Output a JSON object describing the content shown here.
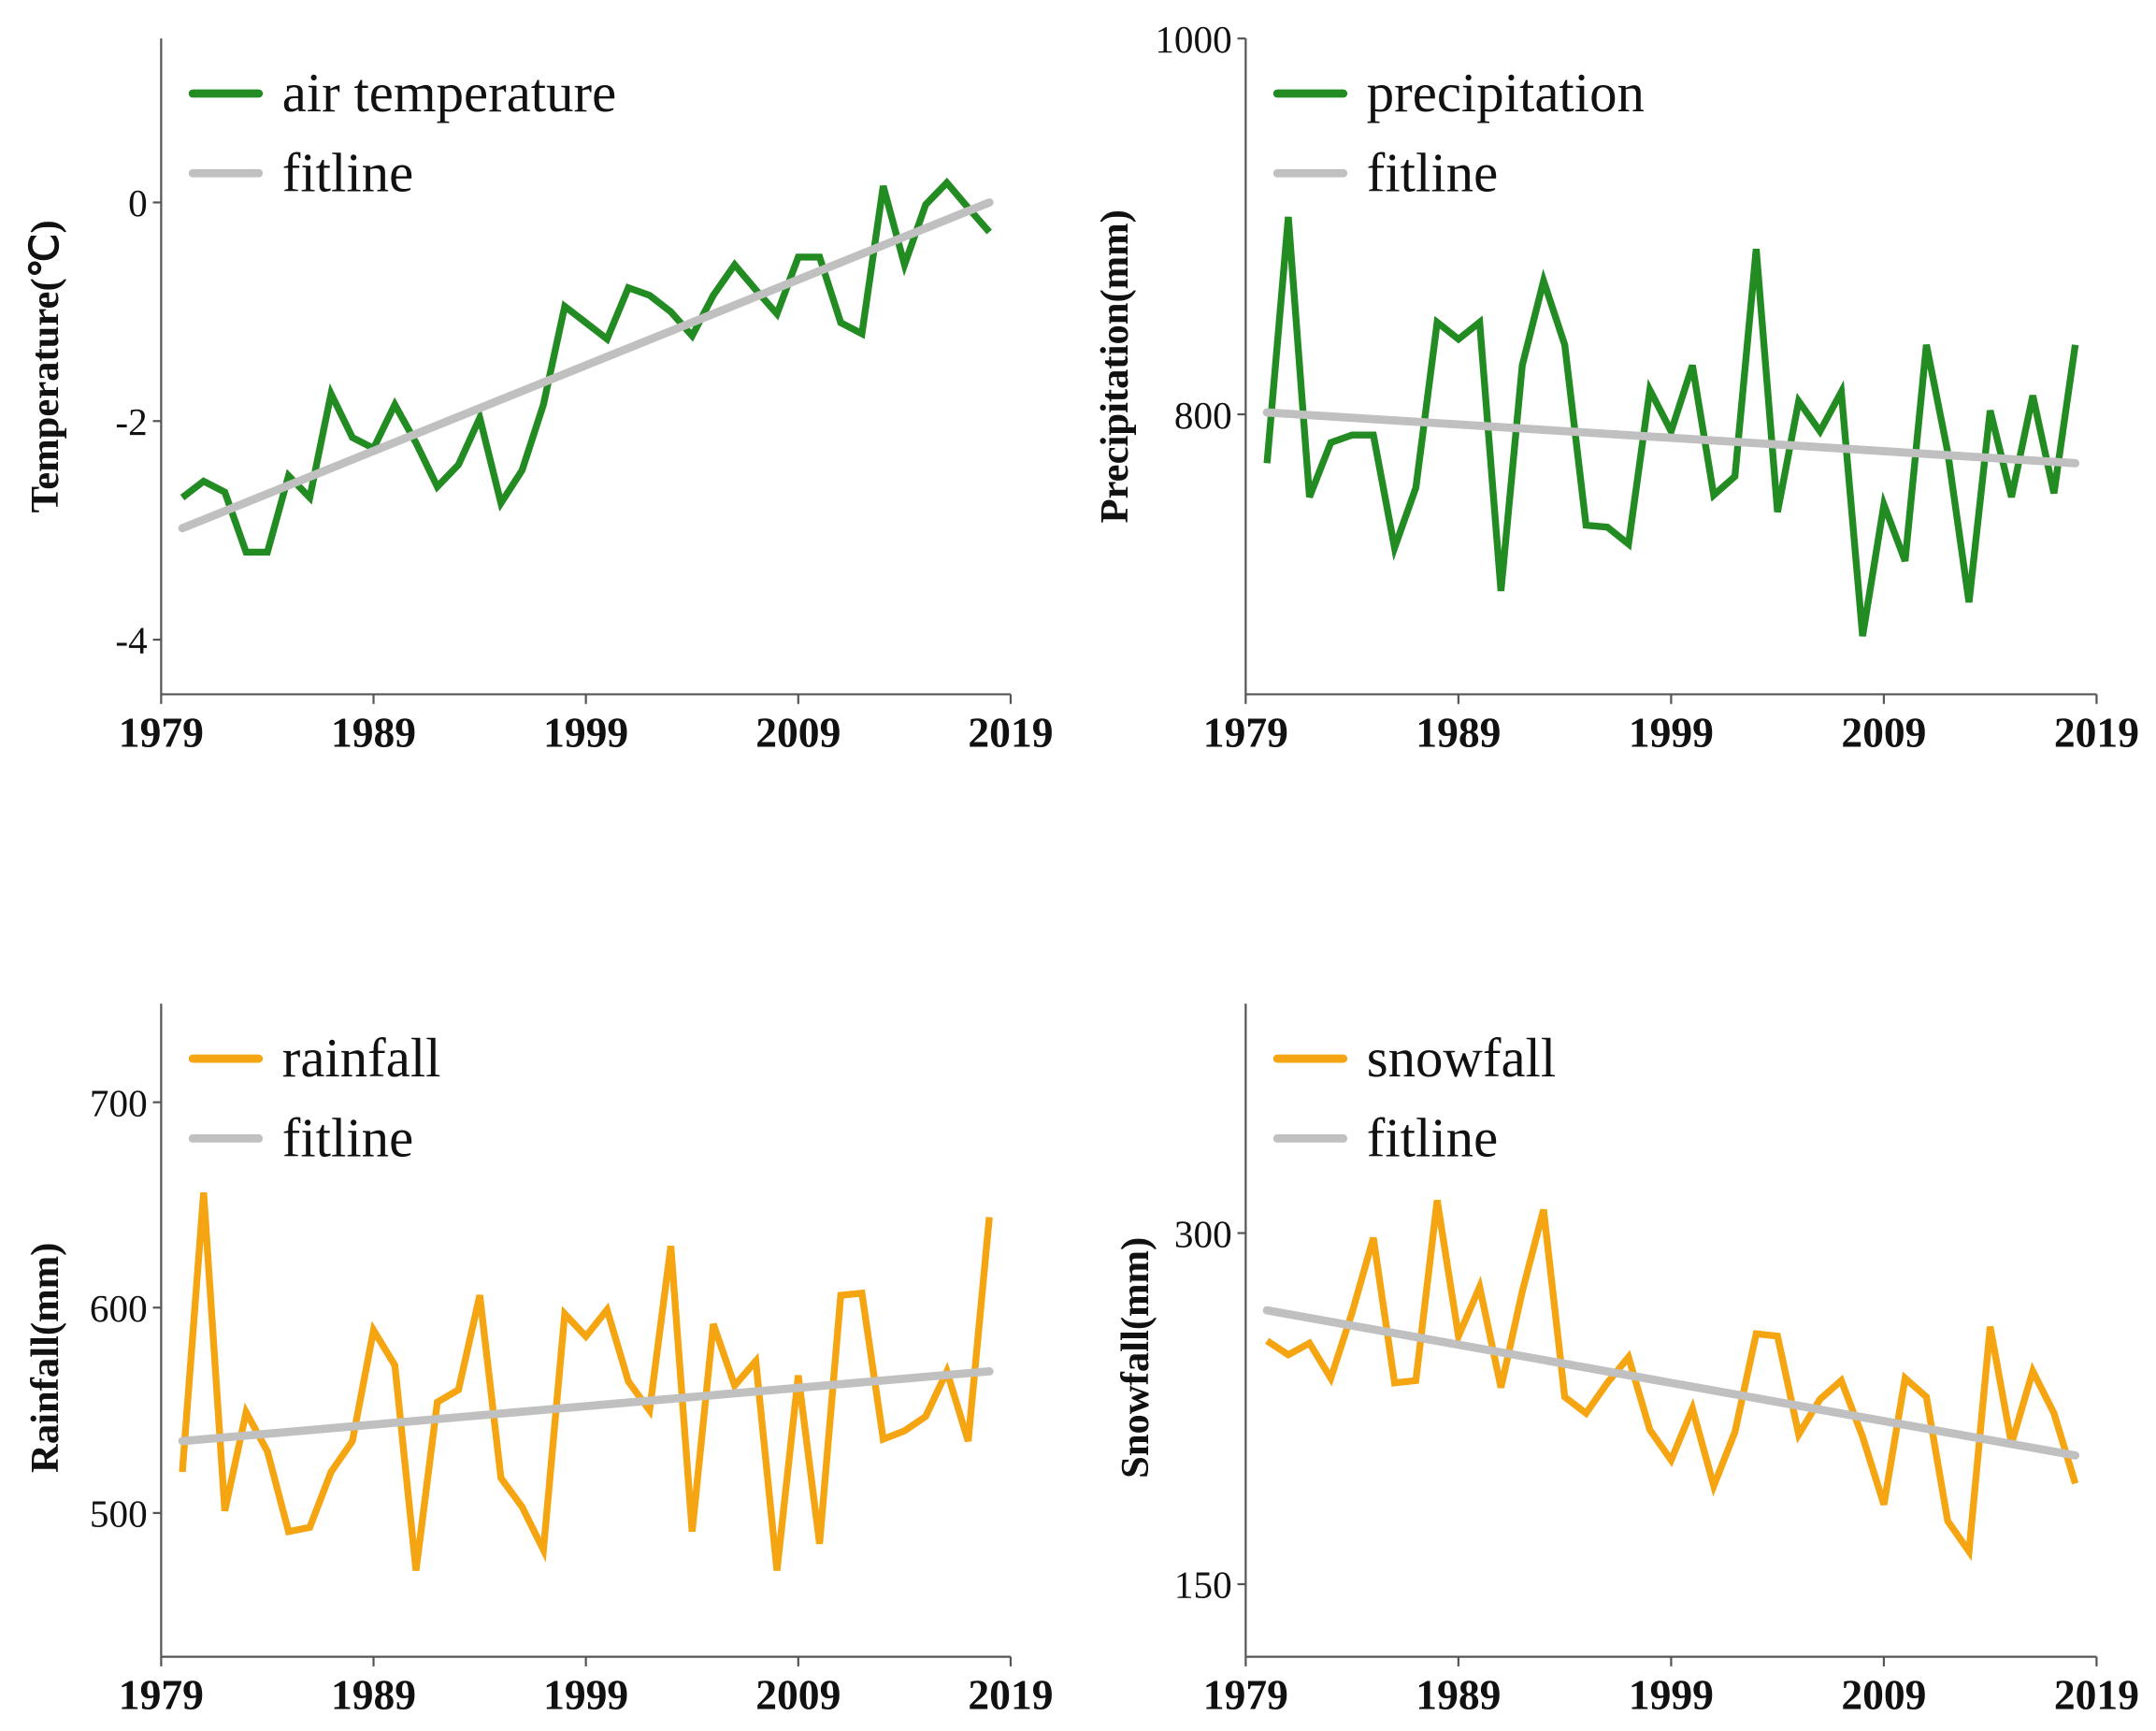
{
  "colors": {
    "green": "#228B22",
    "orange": "#F5A511",
    "fit": "#C0C0C0",
    "axis": "#555555"
  },
  "chart_data": [
    {
      "type": "line",
      "ylabel": "Temperature(℃)",
      "xlabel": "",
      "xlim": [
        1979,
        2019
      ],
      "xticks": [
        "1979",
        "1989",
        "1999",
        "2009",
        "2019"
      ],
      "ylim": [
        -4.5,
        1.5
      ],
      "yticks": [
        {
          "value": 0,
          "label": "0"
        },
        {
          "value": -2,
          "label": "-2"
        },
        {
          "value": -4,
          "label": "-4"
        }
      ],
      "legend_position": "top-left",
      "color": "green",
      "series": [
        {
          "name": "air temperature",
          "x_start": 1980,
          "values": [
            -2.7,
            -2.55,
            -2.65,
            -3.2,
            -3.2,
            -2.5,
            -2.7,
            -1.75,
            -2.15,
            -2.25,
            -1.85,
            -2.2,
            -2.6,
            -2.4,
            -1.97,
            -2.75,
            -2.45,
            -1.85,
            -0.95,
            -1.1,
            -1.25,
            -0.78,
            -0.85,
            -1.0,
            -1.22,
            -0.85,
            -0.57,
            -0.8,
            -1.02,
            -0.5,
            -0.5,
            -1.1,
            -1.2,
            0.15,
            -0.57,
            -0.02,
            0.18,
            -0.05,
            -0.27
          ]
        },
        {
          "name": "fitline",
          "x": [
            1980,
            2018
          ],
          "values": [
            -2.98,
            0.0
          ]
        }
      ]
    },
    {
      "type": "line",
      "ylabel": "Precipitation(mm)",
      "xlabel": "",
      "xlim": [
        1979,
        2019
      ],
      "xticks": [
        "1979",
        "1989",
        "1999",
        "2009",
        "2019"
      ],
      "ylim": [
        651,
        1000
      ],
      "yticks": [
        {
          "value": 800,
          "label": "800"
        },
        {
          "value": 1000,
          "label": "1000"
        }
      ],
      "legend_position": "top-left",
      "color": "green",
      "series": [
        {
          "name": "precipitation",
          "x_start": 1980,
          "values": [
            774,
            905,
            756,
            785,
            789,
            789,
            729,
            761,
            849,
            840,
            849,
            706,
            826,
            871,
            837,
            741,
            740,
            731,
            813,
            791,
            826,
            757,
            767,
            888,
            748,
            807,
            791,
            812,
            682,
            752,
            722,
            837,
            780,
            700,
            802,
            756,
            810,
            758,
            837
          ]
        },
        {
          "name": "fitline",
          "x": [
            1980,
            2018
          ],
          "values": [
            801,
            774
          ]
        }
      ]
    },
    {
      "type": "line",
      "ylabel": "Rainfall(mm)",
      "xlabel": "",
      "xlim": [
        1979,
        2019
      ],
      "xticks": [
        "1979",
        "1989",
        "1999",
        "2009",
        "2019"
      ],
      "ylim": [
        430,
        748
      ],
      "yticks": [
        {
          "value": 500,
          "label": "500"
        },
        {
          "value": 600,
          "label": "600"
        },
        {
          "value": 700,
          "label": "700"
        }
      ],
      "legend_position": "top-left",
      "color": "orange",
      "series": [
        {
          "name": "rainfall",
          "x_start": 1980,
          "values": [
            520,
            656,
            501,
            549,
            530,
            491,
            493,
            520,
            535,
            589,
            572,
            472,
            554,
            560,
            606,
            517,
            503,
            482,
            597,
            586,
            599,
            564,
            550,
            630,
            491,
            592,
            562,
            574,
            472,
            567,
            485,
            606,
            607,
            536,
            540,
            547,
            569,
            535,
            644
          ]
        },
        {
          "name": "fitline",
          "x": [
            1980,
            2018
          ],
          "values": [
            535,
            569
          ]
        }
      ]
    },
    {
      "type": "line",
      "ylabel": "Snowfall(mm)",
      "xlabel": "",
      "xlim": [
        1979,
        2019
      ],
      "xticks": [
        "1979",
        "1989",
        "1999",
        "2009",
        "2019"
      ],
      "ylim": [
        119,
        398
      ],
      "yticks": [
        {
          "value": 150,
          "label": "150"
        },
        {
          "value": 300,
          "label": "300"
        }
      ],
      "legend_position": "top-left",
      "color": "orange",
      "series": [
        {
          "name": "snowfall",
          "x_start": 1980,
          "values": [
            254,
            248,
            253,
            238,
            266,
            298,
            236,
            237,
            314,
            256,
            277,
            234,
            275,
            310,
            230,
            223,
            236,
            247,
            216,
            203,
            225,
            192,
            215,
            257,
            256,
            214,
            229,
            237,
            213,
            184,
            238,
            230,
            177,
            164,
            260,
            210,
            241,
            223,
            193
          ]
        },
        {
          "name": "fitline",
          "x": [
            1980,
            2018
          ],
          "values": [
            267,
            205
          ]
        }
      ]
    }
  ]
}
